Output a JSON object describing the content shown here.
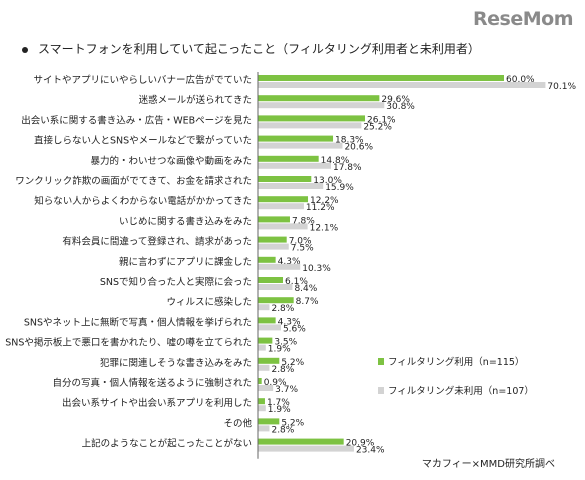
{
  "logo": "ReseMom",
  "title": "スマートフォンを利用していて起こったこと（フィルタリング利用者と未利用者）",
  "source": "マカフィー×MMD研究所調べ",
  "colors": {
    "filtered": "#7dc242",
    "unfiltered": "#d3d3d3"
  },
  "chart_data": {
    "type": "bar",
    "orientation": "horizontal",
    "categories": [
      "サイトやアプリにいやらしいバナー広告がでていた",
      "迷惑メールが送られてきた",
      "出会い系に関する書き込み・広告・WEBページを見た",
      "直接しらない人とSNSやメールなどで繋がっていた",
      "暴力的・わいせつな画像や動画をみた",
      "ワンクリック詐欺の画面がでてきて、お金を請求された",
      "知らない人からよくわからない電話がかかってきた",
      "いじめに関する書き込みをみた",
      "有料会員に間違って登録され、請求があった",
      "親に言わずにアプリに課金した",
      "SNSで知り合った人と実際に会った",
      "ウィルスに感染した",
      "SNSやネット上に無断で写真・個人情報を挙げられた",
      "SNSや掲示板上で悪口を書かれたり、嘘の噂を立てられた",
      "犯罪に関連しそうな書き込みをみた",
      "自分の写真・個人情報を送るように強制された",
      "出会い系サイトや出会い系アプリを利用した",
      "その他",
      "上記のようなことが起こったことがない"
    ],
    "series": [
      {
        "name": "フィルタリング利用（n=115）",
        "values": [
          60.0,
          29.6,
          26.1,
          18.3,
          14.8,
          13.0,
          12.2,
          7.8,
          7.0,
          4.3,
          6.1,
          8.7,
          4.3,
          3.5,
          5.2,
          0.9,
          1.7,
          5.2,
          20.9
        ]
      },
      {
        "name": "フィルタリング未利用（n=107）",
        "values": [
          70.1,
          30.8,
          25.2,
          20.6,
          17.8,
          15.9,
          11.2,
          12.1,
          7.5,
          10.3,
          8.4,
          2.8,
          5.6,
          1.9,
          2.8,
          3.7,
          1.9,
          2.8,
          23.4
        ]
      }
    ],
    "value_format": "0.0%",
    "legend_position": "right",
    "grid": false
  }
}
